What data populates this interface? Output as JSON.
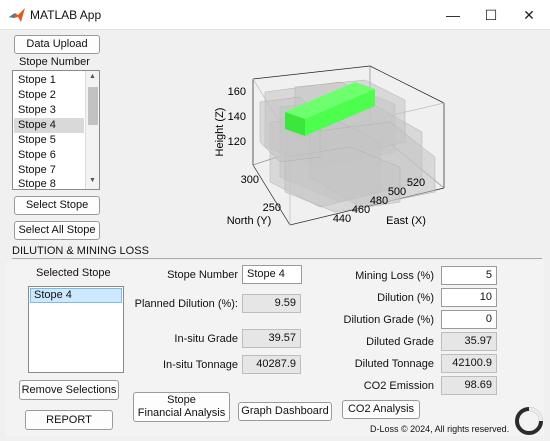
{
  "window": {
    "title": "MATLAB App",
    "minimize": "—",
    "maximize": "☐",
    "close": "✕"
  },
  "top": {
    "data_upload": "Data Upload",
    "stope_number_label": "Stope Number",
    "stopes": [
      "Stope  1",
      "Stope  2",
      "Stope  3",
      "Stope  4",
      "Stope  5",
      "Stope  6",
      "Stope  7",
      "Stope  8"
    ],
    "selected_index": 3,
    "select_stope": "Select Stope",
    "select_all": "Select All Stope"
  },
  "plot": {
    "zlabel": "Height (Z)",
    "ylabel": "North (Y)",
    "xlabel": "East (X)",
    "zticks": [
      "120",
      "140",
      "160"
    ],
    "yticks": [
      "250",
      "300"
    ],
    "xticks": [
      "440",
      "460",
      "480",
      "500",
      "520"
    ],
    "highlight_color": "#4dff4d",
    "block_color": "#c4c4c4"
  },
  "section_title": "DILUTION & MINING LOSS",
  "bottom": {
    "selected_stope_label": "Selected Stope",
    "selected_items": [
      "Stope  4"
    ],
    "remove_selections": "Remove Selections",
    "report": "REPORT",
    "stope_number_label": "Stope Number",
    "stope_number_value": "Stope  4",
    "planned_dilution_label": "Planned Dilution (%):",
    "planned_dilution_value": "9.59",
    "insitu_grade_label": "In-situ Grade",
    "insitu_grade_value": "39.57",
    "insitu_tonnage_label": "In-situ Tonnage",
    "insitu_tonnage_value": "40287.9",
    "mining_loss_label": "Mining Loss (%)",
    "mining_loss_value": "5",
    "dilution_label": "Dilution (%)",
    "dilution_value": "10",
    "dilution_grade_label": "Dilution Grade (%)",
    "dilution_grade_value": "0",
    "diluted_grade_label": "Diluted Grade",
    "diluted_grade_value": "35.97",
    "diluted_tonnage_label": "Diluted Tonnage",
    "diluted_tonnage_value": "42100.9",
    "co2_emission_label": "CO2 Emission",
    "co2_emission_value": "98.69",
    "stope_financial_line1": "Stope",
    "stope_financial_line2": "Financial Analysis",
    "graph_dashboard": "Graph Dashboard",
    "co2_analysis": "CO2 Analysis",
    "copyright": "D-Loss © 2024, All rights reserved."
  }
}
